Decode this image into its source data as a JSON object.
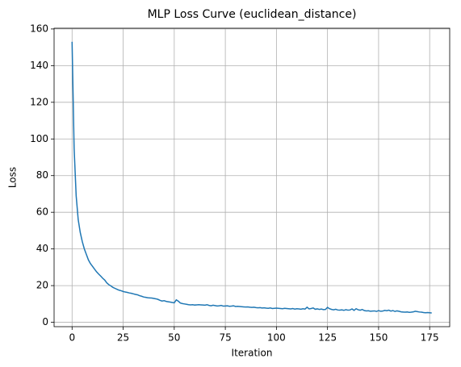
{
  "chart_data": {
    "type": "line",
    "title": "MLP Loss Curve (euclidean_distance)",
    "xlabel": "Iteration",
    "ylabel": "Loss",
    "x": [
      0,
      1,
      2,
      3,
      4,
      5,
      6,
      7,
      8,
      9,
      10,
      11,
      12,
      13,
      14,
      15,
      16,
      17,
      18,
      19,
      20,
      21,
      22,
      23,
      24,
      25,
      26,
      27,
      28,
      29,
      30,
      31,
      32,
      33,
      34,
      35,
      36,
      37,
      38,
      39,
      40,
      41,
      42,
      43,
      44,
      45,
      46,
      47,
      48,
      49,
      50,
      51,
      52,
      53,
      54,
      55,
      56,
      57,
      58,
      59,
      60,
      61,
      62,
      63,
      64,
      65,
      66,
      67,
      68,
      69,
      70,
      71,
      72,
      73,
      74,
      75,
      76,
      77,
      78,
      79,
      80,
      81,
      82,
      83,
      84,
      85,
      86,
      87,
      88,
      89,
      90,
      91,
      92,
      93,
      94,
      95,
      96,
      97,
      98,
      99,
      100,
      101,
      102,
      103,
      104,
      105,
      106,
      107,
      108,
      109,
      110,
      111,
      112,
      113,
      114,
      115,
      116,
      117,
      118,
      119,
      120,
      121,
      122,
      123,
      124,
      125,
      126,
      127,
      128,
      129,
      130,
      131,
      132,
      133,
      134,
      135,
      136,
      137,
      138,
      139,
      140,
      141,
      142,
      143,
      144,
      145,
      146,
      147,
      148,
      149,
      150,
      151,
      152,
      153,
      154,
      155,
      156,
      157,
      158,
      159,
      160,
      161,
      162,
      163,
      164,
      165,
      166,
      167,
      168,
      169,
      170,
      171,
      172,
      173,
      174,
      175,
      176
    ],
    "series": [
      {
        "name": "Loss",
        "color": "#1f77b4",
        "values": [
          153,
          95,
          69,
          56,
          49,
          44,
          40,
          37,
          34,
          32,
          30.5,
          29,
          27.5,
          26.3,
          25.2,
          24,
          23,
          21.5,
          20.5,
          19.8,
          19,
          18.5,
          18,
          17.5,
          17.2,
          16.8,
          16.5,
          16.3,
          16,
          15.8,
          15.5,
          15.2,
          15,
          14.5,
          14.2,
          13.8,
          13.6,
          13.4,
          13.3,
          13.2,
          13,
          12.8,
          12.5,
          12,
          11.6,
          11.8,
          11.4,
          11.2,
          11,
          10.8,
          10.6,
          12.2,
          11.5,
          10.5,
          10.2,
          10,
          9.8,
          9.6,
          9.5,
          9.6,
          9.4,
          9.5,
          9.6,
          9.5,
          9.4,
          9.3,
          9.6,
          9.2,
          9,
          9.3,
          9.1,
          8.9,
          9,
          9.2,
          8.8,
          8.9,
          9,
          8.7,
          8.8,
          9,
          8.6,
          8.7,
          8.6,
          8.5,
          8.4,
          8.3,
          8.4,
          8.2,
          8.1,
          8.2,
          8,
          7.9,
          8,
          7.8,
          7.9,
          7.7,
          7.6,
          7.8,
          7.5,
          7.6,
          7.7,
          7.6,
          7.5,
          7.4,
          7.6,
          7.5,
          7.4,
          7.3,
          7.5,
          7.2,
          7.4,
          7.3,
          7.1,
          7.4,
          7.2,
          8.2,
          7.3,
          7.5,
          7.8,
          7.1,
          7.3,
          7,
          7.2,
          6.9,
          7,
          8.1,
          7.4,
          7,
          6.8,
          7.1,
          6.7,
          6.6,
          6.8,
          6.5,
          6.9,
          6.6,
          6.7,
          7.3,
          6.5,
          7.4,
          6.8,
          6.6,
          7,
          6.4,
          6.2,
          6.3,
          6,
          6.1,
          6.2,
          5.9,
          6.4,
          6,
          6.1,
          6.5,
          6.3,
          6.6,
          6.1,
          6.4,
          5.9,
          6.2,
          6,
          5.7,
          5.6,
          5.5,
          5.6,
          5.4,
          5.5,
          5.7,
          6,
          5.8,
          5.6,
          5.5,
          5.3,
          5.2,
          5.3,
          5.2,
          5.1
        ]
      }
    ],
    "xlim": [
      -8.8,
      184.8
    ],
    "xticks": [
      0,
      25,
      50,
      75,
      100,
      125,
      150,
      175
    ],
    "ylim": [
      -2.4,
      160.4
    ],
    "yticks": [
      0,
      20,
      40,
      60,
      80,
      100,
      120,
      140,
      160
    ],
    "grid": true
  }
}
